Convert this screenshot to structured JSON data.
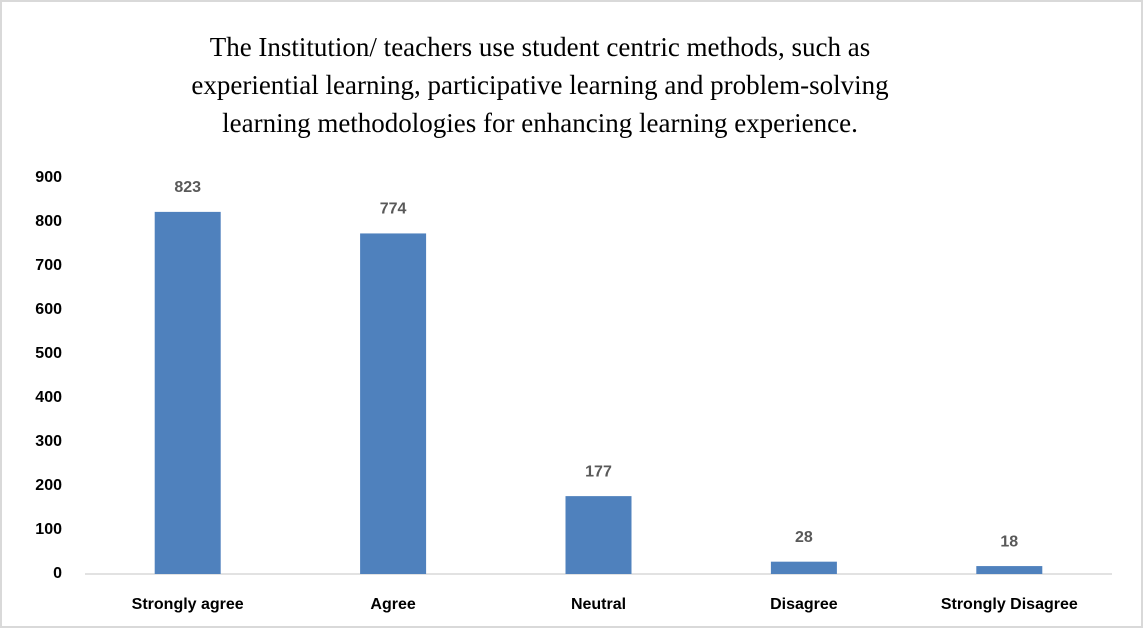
{
  "chart_data": {
    "type": "bar",
    "title": [
      "The Institution/ teachers use student centric methods, such as",
      "experiential learning, participative learning and problem-solving",
      "learning methodologies for enhancing learning experience."
    ],
    "categories": [
      "Strongly agree",
      "Agree",
      "Neutral",
      "Disagree",
      "Strongly Disagree"
    ],
    "values": [
      823,
      774,
      177,
      28,
      18
    ],
    "color": "#4f81bd",
    "ylim": [
      0,
      900
    ],
    "yticks": [
      0,
      100,
      200,
      300,
      400,
      500,
      600,
      700,
      800,
      900
    ],
    "grid": false
  }
}
